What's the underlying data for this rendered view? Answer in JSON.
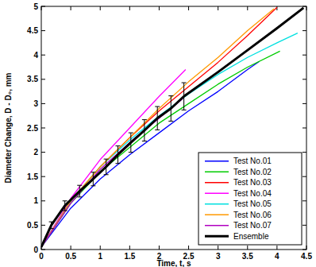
{
  "chart_data": {
    "type": "line",
    "x_label": "Time, t, s",
    "y_label": "Diameter Change, D - D₀, mm",
    "xlim": [
      0,
      4.5
    ],
    "ylim": [
      0,
      5
    ],
    "xticks": [
      0,
      0.5,
      1,
      1.5,
      2,
      2.5,
      3,
      3.5,
      4,
      4.5
    ],
    "yticks": [
      0,
      0.5,
      1,
      1.5,
      2,
      2.5,
      3,
      3.5,
      4,
      4.5,
      5
    ],
    "grid": false,
    "legend": "bottom-right",
    "series": [
      {
        "name": "Test No.01",
        "color": "#0000ff",
        "x": [
          0,
          0.5,
          1,
          1.5,
          2,
          2.5,
          3,
          3.5,
          3.7
        ],
        "values": [
          0.05,
          0.85,
          1.45,
          1.95,
          2.4,
          2.85,
          3.25,
          3.7,
          3.87
        ]
      },
      {
        "name": "Test No.02",
        "color": "#00cc00",
        "x": [
          0,
          0.5,
          1,
          1.5,
          2,
          2.5,
          3,
          3.5,
          4.05
        ],
        "values": [
          0.05,
          0.95,
          1.6,
          2.1,
          2.6,
          3.0,
          3.4,
          3.75,
          4.08
        ]
      },
      {
        "name": "Test No.03",
        "color": "#ff0000",
        "x": [
          0,
          0.5,
          1,
          1.5,
          2,
          2.5,
          3,
          3.5,
          4
        ],
        "values": [
          0.05,
          1.0,
          1.7,
          2.3,
          2.85,
          3.35,
          3.85,
          4.4,
          4.98
        ]
      },
      {
        "name": "Test No.04",
        "color": "#ff00ff",
        "x": [
          0,
          0.5,
          1,
          1.5,
          2,
          2.45
        ],
        "values": [
          0.05,
          1.05,
          1.85,
          2.5,
          3.15,
          3.7
        ]
      },
      {
        "name": "Test No.05",
        "color": "#00e0e0",
        "x": [
          0,
          0.5,
          1,
          1.5,
          2,
          2.5,
          3,
          3.5,
          4,
          4.35
        ],
        "values": [
          0.05,
          1.0,
          1.7,
          2.25,
          2.75,
          3.2,
          3.6,
          3.95,
          4.25,
          4.45
        ]
      },
      {
        "name": "Test No.06",
        "color": "#ff9900",
        "x": [
          0,
          0.5,
          1,
          1.5,
          2,
          2.5,
          3,
          3.5,
          3.95
        ],
        "values": [
          0.05,
          1.0,
          1.7,
          2.3,
          2.9,
          3.45,
          3.95,
          4.5,
          4.95
        ]
      },
      {
        "name": "Test No.07",
        "color": "#b000c0",
        "x": [
          0,
          0.5,
          1,
          1.5,
          2,
          2.4
        ],
        "values": [
          0.05,
          0.95,
          1.65,
          2.2,
          2.7,
          3.1
        ]
      },
      {
        "name": "Ensemble",
        "color": "#000000",
        "x": [
          0,
          0.17,
          0.4,
          0.65,
          0.88,
          1.1,
          1.3,
          1.52,
          1.75,
          1.97,
          2.2,
          2.42,
          3,
          3.5,
          4,
          4.45
        ],
        "values": [
          0.05,
          0.5,
          0.9,
          1.2,
          1.45,
          1.7,
          1.95,
          2.2,
          2.45,
          2.7,
          2.9,
          3.15,
          3.65,
          4.1,
          4.55,
          4.97
        ],
        "errors": [
          null,
          0.07,
          0.1,
          0.12,
          0.14,
          0.16,
          0.18,
          0.2,
          0.22,
          0.24,
          0.26,
          0.28,
          null,
          null,
          null,
          null
        ]
      }
    ]
  }
}
